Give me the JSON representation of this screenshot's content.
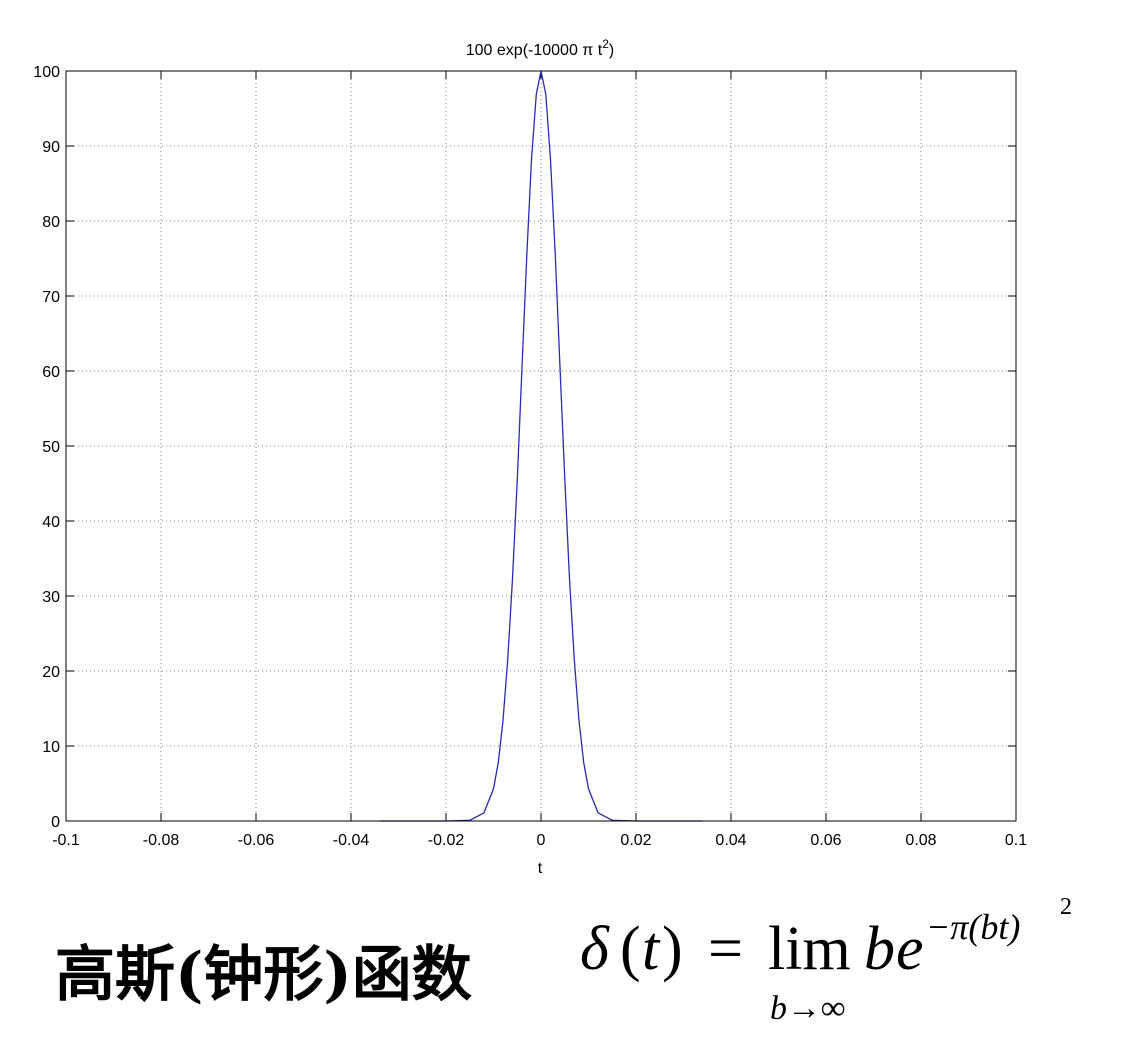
{
  "chart_data": {
    "type": "line",
    "title_main": "100 exp(-10000 ",
    "title_pi": "π",
    "title_t": " t",
    "title_exp": "2",
    "title_close": ")",
    "xlabel": "t",
    "ylabel": "",
    "xlim": [
      -0.1,
      0.1
    ],
    "ylim": [
      0,
      100
    ],
    "xticks": [
      "-0.1",
      "-0.08",
      "-0.06",
      "-0.04",
      "-0.02",
      "0",
      "0.02",
      "0.04",
      "0.06",
      "0.08",
      "0.1"
    ],
    "xtick_values": [
      -0.1,
      -0.08,
      -0.06,
      -0.04,
      -0.02,
      0,
      0.02,
      0.04,
      0.06,
      0.08,
      0.1
    ],
    "yticks": [
      "0",
      "10",
      "20",
      "30",
      "40",
      "50",
      "60",
      "70",
      "80",
      "90",
      "100"
    ],
    "ytick_values": [
      0,
      10,
      20,
      30,
      40,
      50,
      60,
      70,
      80,
      90,
      100
    ],
    "grid": true,
    "series": [
      {
        "color": "#2b2bb0",
        "x": [
          -0.034,
          -0.02,
          -0.015,
          -0.012,
          -0.01,
          -0.009,
          -0.008,
          -0.007,
          -0.006,
          -0.005,
          -0.004,
          -0.003,
          -0.002,
          -0.001,
          0,
          0.001,
          0.002,
          0.003,
          0.004,
          0.005,
          0.006,
          0.007,
          0.008,
          0.009,
          0.01,
          0.012,
          0.015,
          0.02,
          0.034
        ],
        "y": [
          0,
          0,
          0.1,
          1.1,
          4.3,
          7.8,
          13.4,
          21.5,
          32.3,
          45.6,
          60.5,
          75.4,
          88.2,
          96.9,
          100,
          96.9,
          88.2,
          75.4,
          60.5,
          45.6,
          32.3,
          21.5,
          13.4,
          7.8,
          4.3,
          1.1,
          0.1,
          0,
          0
        ]
      }
    ]
  },
  "caption": {
    "label": "高斯(钟形)函数",
    "delta": "δ",
    "lhs_open": "(",
    "lhs_t": "t",
    "lhs_close": ")",
    "equals": "=",
    "lim": "lim",
    "b": "b",
    "e": "e",
    "exponent": "−π(bt)",
    "exponent_power": "2",
    "limit_sub": "b→∞"
  }
}
